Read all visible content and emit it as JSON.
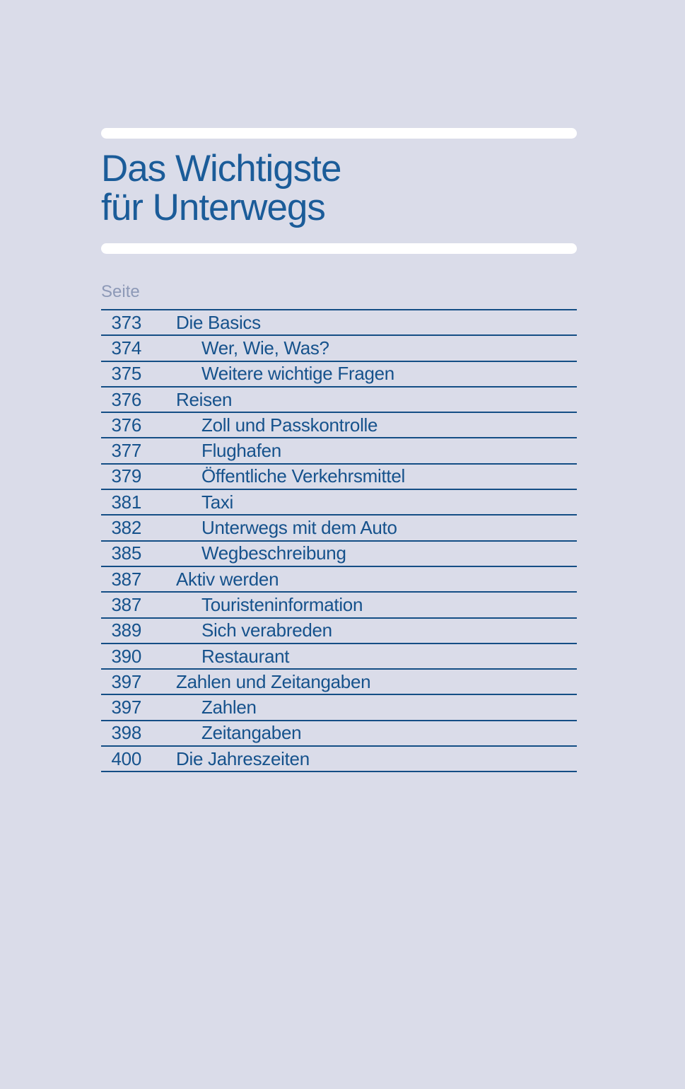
{
  "page": {
    "title_line1": "Das Wichtigste",
    "title_line2": "für Unterwegs",
    "toc_header": "Seite",
    "colors": {
      "background": "#dadce9",
      "bar": "#ffffff",
      "title": "#1b5c99",
      "header": "#8d99b7",
      "text": "#16528c",
      "line": "#144e85"
    },
    "toc": [
      {
        "page": "373",
        "label": "Die Basics",
        "level": 1
      },
      {
        "page": "374",
        "label": "Wer, Wie, Was?",
        "level": 2
      },
      {
        "page": "375",
        "label": "Weitere wichtige Fragen",
        "level": 2
      },
      {
        "page": "376",
        "label": "Reisen",
        "level": 1
      },
      {
        "page": "376",
        "label": "Zoll und Passkontrolle",
        "level": 2
      },
      {
        "page": "377",
        "label": "Flughafen",
        "level": 2
      },
      {
        "page": "379",
        "label": "Öffentliche Verkehrsmittel",
        "level": 2
      },
      {
        "page": "381",
        "label": "Taxi",
        "level": 2
      },
      {
        "page": "382",
        "label": "Unterwegs mit dem Auto",
        "level": 2
      },
      {
        "page": "385",
        "label": "Wegbeschreibung",
        "level": 2
      },
      {
        "page": "387",
        "label": "Aktiv werden",
        "level": 1
      },
      {
        "page": "387",
        "label": "Touristeninformation",
        "level": 2
      },
      {
        "page": "389",
        "label": "Sich verabreden",
        "level": 2
      },
      {
        "page": "390",
        "label": "Restaurant",
        "level": 2
      },
      {
        "page": "397",
        "label": "Zahlen und Zeitangaben",
        "level": 1
      },
      {
        "page": "397",
        "label": "Zahlen",
        "level": 2
      },
      {
        "page": "398",
        "label": "Zeitangaben",
        "level": 2
      },
      {
        "page": "400",
        "label": "Die Jahreszeiten",
        "level": 1
      }
    ]
  }
}
